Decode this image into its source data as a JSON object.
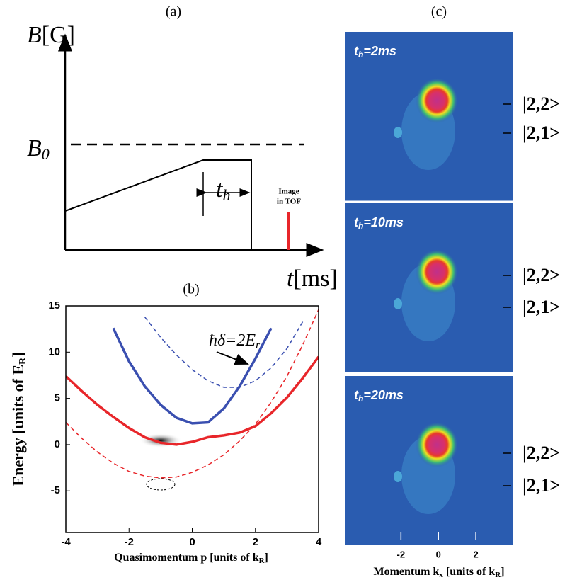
{
  "panel_a": {
    "label": "(a)",
    "y_axis_label": {
      "main": "B",
      "tail": "[G]"
    },
    "x_axis_label": {
      "main": "t",
      "tail": "[ms]"
    },
    "b0_label": {
      "main": "B",
      "sub": "0"
    },
    "hold_label": {
      "main": "t",
      "sub": "h"
    },
    "image_label": [
      "Image",
      "in TOF"
    ]
  },
  "chart_data": {
    "type": "line",
    "panel_label": "(b)",
    "xlabel": {
      "text": "Quasimomentum  p [units of k",
      "sub": "R",
      "tail": "]"
    },
    "ylabel": {
      "text": "Energy [units of E",
      "sub": "R",
      "tail": "]"
    },
    "annotation": {
      "text": "ħδ=2E",
      "sub": "r"
    },
    "x": [
      -4,
      -3.5,
      -3,
      -2.5,
      -2,
      -1.5,
      -1,
      -0.5,
      0,
      0.5,
      1,
      1.5,
      2,
      2.5,
      3,
      3.5,
      4
    ],
    "series": [
      {
        "color": "#e8262a",
        "style": "solid",
        "values": [
          7.4,
          5.8,
          4.3,
          3.0,
          1.8,
          0.8,
          0.2,
          0,
          0.3,
          0.8,
          1.0,
          1.3,
          2.0,
          3.4,
          5.1,
          7.2,
          9.5
        ]
      },
      {
        "color": "#3a4fb0",
        "style": "solid",
        "values": [
          null,
          null,
          null,
          12.6,
          9.0,
          6.3,
          4.3,
          2.9,
          2.3,
          2.4,
          3.9,
          6.3,
          9.3,
          12.6,
          null,
          null,
          null
        ]
      },
      {
        "color": "#e8262a",
        "style": "dashed",
        "values": [
          2.4,
          0.7,
          -0.8,
          -2.0,
          -2.9,
          -3.4,
          -3.6,
          -3.5,
          -3.0,
          -2.2,
          -1.1,
          0.4,
          2.2,
          4.6,
          7.4,
          10.8,
          14.6
        ]
      },
      {
        "color": "#3a4fb0",
        "style": "dashed",
        "values": [
          null,
          null,
          null,
          null,
          null,
          13.8,
          11.6,
          9.7,
          8.1,
          6.9,
          6.2,
          6.2,
          6.9,
          8.3,
          10.4,
          13.3,
          null
        ]
      }
    ],
    "xlim": [
      -4,
      4
    ],
    "ylim": [
      -9.5,
      15
    ],
    "xticks": [
      -4,
      -2,
      0,
      2,
      4
    ],
    "yticks": [
      -5,
      0,
      5,
      10,
      15
    ]
  },
  "panel_c": {
    "label": "(c)",
    "xlabel": {
      "text": "Momentum  k",
      "sub": "x",
      "mid": " [units of k",
      "sub2": "R",
      "tail": "]"
    },
    "xlim": [
      -5,
      4
    ],
    "xticks": [
      -2,
      0,
      2
    ],
    "images": [
      {
        "title": {
          "main": "t",
          "sub": "h",
          "tail": "=2ms"
        },
        "states": [
          "|2,2>",
          "|2,1>"
        ]
      },
      {
        "title": {
          "main": "t",
          "sub": "h",
          "tail": "=10ms"
        },
        "states": [
          "|2,2>",
          "|2,1>"
        ]
      },
      {
        "title": {
          "main": "t",
          "sub": "h",
          "tail": "=20ms"
        },
        "states": [
          "|2,2>",
          "|2,1>"
        ]
      }
    ]
  }
}
